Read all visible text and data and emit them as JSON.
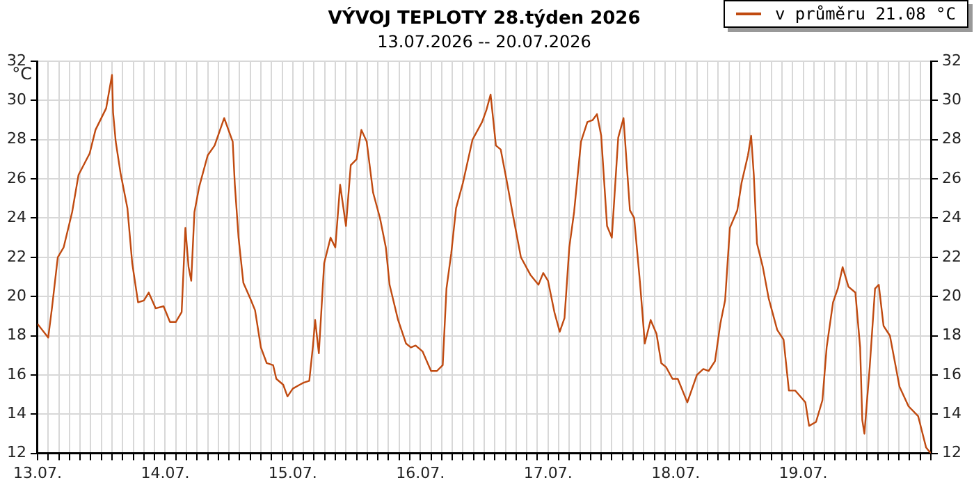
{
  "chart_data": {
    "type": "line",
    "title": "VÝVOJ TEPLOTY 28.týden 2026",
    "subtitle": "13.07.2026 -- 20.07.2026",
    "ylabel": "°C",
    "legend": "top right",
    "grid": true,
    "marker": "none",
    "line_style": "solid",
    "xlim": [
      "2026-07-13",
      "2026-07-20"
    ],
    "xticks": [
      {
        "value": "2026-07-13",
        "label": "13.07."
      },
      {
        "value": "2026-07-13T02:00",
        "label": null
      },
      {
        "value": "2026-07-13T04:00",
        "label": null
      },
      {
        "value": "2026-07-13T06:00",
        "label": null
      },
      {
        "value": "2026-07-13T08:00",
        "label": null
      },
      {
        "value": "2026-07-13T10:00",
        "label": null
      },
      {
        "value": "2026-07-13T12:00",
        "label": null
      },
      {
        "value": "2026-07-13T14:00",
        "label": null
      },
      {
        "value": "2026-07-13T16:00",
        "label": null
      },
      {
        "value": "2026-07-13T18:00",
        "label": null
      },
      {
        "value": "2026-07-13T20:00",
        "label": null
      },
      {
        "value": "2026-07-13T22:00",
        "label": null
      },
      {
        "value": "2026-07-14",
        "label": "14.07."
      },
      {
        "value": "2026-07-14T02:00",
        "label": null
      },
      {
        "value": "2026-07-14T04:00",
        "label": null
      },
      {
        "value": "2026-07-14T06:00",
        "label": null
      },
      {
        "value": "2026-07-14T08:00",
        "label": null
      },
      {
        "value": "2026-07-14T10:00",
        "label": null
      },
      {
        "value": "2026-07-14T12:00",
        "label": null
      },
      {
        "value": "2026-07-14T14:00",
        "label": null
      },
      {
        "value": "2026-07-14T16:00",
        "label": null
      },
      {
        "value": "2026-07-14T18:00",
        "label": null
      },
      {
        "value": "2026-07-14T20:00",
        "label": null
      },
      {
        "value": "2026-07-14T22:00",
        "label": null
      },
      {
        "value": "2026-07-15",
        "label": "15.07."
      },
      {
        "value": "2026-07-15T02:00",
        "label": null
      },
      {
        "value": "2026-07-15T04:00",
        "label": null
      },
      {
        "value": "2026-07-15T06:00",
        "label": null
      },
      {
        "value": "2026-07-15T08:00",
        "label": null
      },
      {
        "value": "2026-07-15T10:00",
        "label": null
      },
      {
        "value": "2026-07-15T12:00",
        "label": null
      },
      {
        "value": "2026-07-15T14:00",
        "label": null
      },
      {
        "value": "2026-07-15T16:00",
        "label": null
      },
      {
        "value": "2026-07-15T18:00",
        "label": null
      },
      {
        "value": "2026-07-15T20:00",
        "label": null
      },
      {
        "value": "2026-07-15T22:00",
        "label": null
      },
      {
        "value": "2026-07-16",
        "label": "16.07."
      },
      {
        "value": "2026-07-16T02:00",
        "label": null
      },
      {
        "value": "2026-07-16T04:00",
        "label": null
      },
      {
        "value": "2026-07-16T06:00",
        "label": null
      },
      {
        "value": "2026-07-16T08:00",
        "label": null
      },
      {
        "value": "2026-07-16T10:00",
        "label": null
      },
      {
        "value": "2026-07-16T12:00",
        "label": null
      },
      {
        "value": "2026-07-16T14:00",
        "label": null
      },
      {
        "value": "2026-07-16T16:00",
        "label": null
      },
      {
        "value": "2026-07-16T18:00",
        "label": null
      },
      {
        "value": "2026-07-16T20:00",
        "label": null
      },
      {
        "value": "2026-07-16T22:00",
        "label": null
      },
      {
        "value": "2026-07-17",
        "label": "17.07."
      },
      {
        "value": "2026-07-17T02:00",
        "label": null
      },
      {
        "value": "2026-07-17T04:00",
        "label": null
      },
      {
        "value": "2026-07-17T06:00",
        "label": null
      },
      {
        "value": "2026-07-17T08:00",
        "label": null
      },
      {
        "value": "2026-07-17T10:00",
        "label": null
      },
      {
        "value": "2026-07-17T12:00",
        "label": null
      },
      {
        "value": "2026-07-17T14:00",
        "label": null
      },
      {
        "value": "2026-07-17T16:00",
        "label": null
      },
      {
        "value": "2026-07-17T18:00",
        "label": null
      },
      {
        "value": "2026-07-17T20:00",
        "label": null
      },
      {
        "value": "2026-07-17T22:00",
        "label": null
      },
      {
        "value": "2026-07-18",
        "label": "18.07."
      },
      {
        "value": "2026-07-18T02:00",
        "label": null
      },
      {
        "value": "2026-07-18T04:00",
        "label": null
      },
      {
        "value": "2026-07-18T06:00",
        "label": null
      },
      {
        "value": "2026-07-18T08:00",
        "label": null
      },
      {
        "value": "2026-07-18T10:00",
        "label": null
      },
      {
        "value": "2026-07-18T12:00",
        "label": null
      },
      {
        "value": "2026-07-18T14:00",
        "label": null
      },
      {
        "value": "2026-07-18T16:00",
        "label": null
      },
      {
        "value": "2026-07-18T18:00",
        "label": null
      },
      {
        "value": "2026-07-18T20:00",
        "label": null
      },
      {
        "value": "2026-07-18T22:00",
        "label": null
      },
      {
        "value": "2026-07-19",
        "label": "19.07."
      },
      {
        "value": "2026-07-19T02:00",
        "label": null
      },
      {
        "value": "2026-07-19T04:00",
        "label": null
      },
      {
        "value": "2026-07-19T06:00",
        "label": null
      },
      {
        "value": "2026-07-19T08:00",
        "label": null
      },
      {
        "value": "2026-07-19T10:00",
        "label": null
      },
      {
        "value": "2026-07-19T12:00",
        "label": null
      },
      {
        "value": "2026-07-19T14:00",
        "label": null
      },
      {
        "value": "2026-07-19T16:00",
        "label": null
      },
      {
        "value": "2026-07-19T18:00",
        "label": null
      },
      {
        "value": "2026-07-19T20:00",
        "label": null
      },
      {
        "value": "2026-07-19T22:00",
        "label": null
      },
      {
        "value": "2026-07-20",
        "label": null
      }
    ],
    "ylim": [
      12,
      32
    ],
    "yticks": [
      12,
      14,
      16,
      18,
      20,
      22,
      24,
      26,
      28,
      30,
      32
    ],
    "y2lim": [
      12,
      32
    ],
    "y2ticks": [
      12,
      14,
      16,
      18,
      20,
      22,
      24,
      26,
      28,
      30,
      32
    ],
    "x": [
      "2026-07-13T00:00",
      "2026-07-13T02:00",
      "2026-07-13T02:42",
      "2026-07-13T03:48",
      "2026-07-13T04:54",
      "2026-07-13T06:30",
      "2026-07-13T07:42",
      "2026-07-13T09:48",
      "2026-07-13T10:54",
      "2026-07-13T12:54",
      "2026-07-13T14:00",
      "2026-07-13T14:12",
      "2026-07-13T14:42",
      "2026-07-13T15:36",
      "2026-07-13T16:54",
      "2026-07-13T17:48",
      "2026-07-13T18:54",
      "2026-07-13T20:00",
      "2026-07-13T20:54",
      "2026-07-13T22:12",
      "2026-07-13T23:42",
      "2026-07-14T00:54",
      "2026-07-14T02:00",
      "2026-07-14T03:06",
      "2026-07-14T03:48",
      "2026-07-14T04:24",
      "2026-07-14T04:54",
      "2026-07-14T05:30",
      "2026-07-14T06:24",
      "2026-07-14T08:00",
      "2026-07-14T09:18",
      "2026-07-14T11:06",
      "2026-07-14T12:42",
      "2026-07-14T13:06",
      "2026-07-14T13:48",
      "2026-07-14T14:42",
      "2026-07-14T16:00",
      "2026-07-14T16:54",
      "2026-07-14T18:00",
      "2026-07-14T19:06",
      "2026-07-14T20:18",
      "2026-07-14T20:54",
      "2026-07-14T22:12",
      "2026-07-14T23:00",
      "2026-07-15T00:00",
      "2026-07-15T01:18",
      "2026-07-15T02:00",
      "2026-07-15T03:06",
      "2026-07-15T03:48",
      "2026-07-15T04:12",
      "2026-07-15T04:54",
      "2026-07-15T05:54",
      "2026-07-15T07:06",
      "2026-07-15T08:00",
      "2026-07-15T08:54",
      "2026-07-15T10:00",
      "2026-07-15T10:54",
      "2026-07-15T12:00",
      "2026-07-15T12:54",
      "2026-07-15T13:54",
      "2026-07-15T15:06",
      "2026-07-15T16:24",
      "2026-07-15T17:30",
      "2026-07-15T18:12",
      "2026-07-15T19:48",
      "2026-07-15T21:18",
      "2026-07-15T22:12",
      "2026-07-15T23:06",
      "2026-07-16T00:24",
      "2026-07-16T02:00",
      "2026-07-16T03:06",
      "2026-07-16T04:12",
      "2026-07-16T04:54",
      "2026-07-16T05:48",
      "2026-07-16T06:42",
      "2026-07-16T08:00",
      "2026-07-16T09:48",
      "2026-07-16T11:36",
      "2026-07-16T12:24",
      "2026-07-16T13:12",
      "2026-07-16T14:12",
      "2026-07-16T15:06",
      "2026-07-16T16:18",
      "2026-07-16T17:18",
      "2026-07-16T18:54",
      "2026-07-16T20:42",
      "2026-07-16T22:12",
      "2026-07-16T23:06",
      "2026-07-17T00:00",
      "2026-07-17T01:12",
      "2026-07-17T02:12",
      "2026-07-17T03:06",
      "2026-07-17T04:00",
      "2026-07-17T04:54",
      "2026-07-17T06:12",
      "2026-07-17T07:24",
      "2026-07-17T08:24",
      "2026-07-17T09:12",
      "2026-07-17T10:00",
      "2026-07-17T11:06",
      "2026-07-17T12:00",
      "2026-07-17T13:12",
      "2026-07-17T14:12",
      "2026-07-17T15:24",
      "2026-07-17T16:12",
      "2026-07-17T17:18",
      "2026-07-17T18:12",
      "2026-07-17T19:18",
      "2026-07-17T20:24",
      "2026-07-17T21:18",
      "2026-07-17T22:12",
      "2026-07-17T23:24",
      "2026-07-18T00:24",
      "2026-07-18T02:12",
      "2026-07-18T04:00",
      "2026-07-18T05:12",
      "2026-07-18T06:12",
      "2026-07-18T07:24",
      "2026-07-18T08:24",
      "2026-07-18T09:18",
      "2026-07-18T10:12",
      "2026-07-18T11:36",
      "2026-07-18T12:24",
      "2026-07-18T13:36",
      "2026-07-18T14:12",
      "2026-07-18T14:42",
      "2026-07-18T15:18",
      "2026-07-18T16:24",
      "2026-07-18T17:30",
      "2026-07-18T19:06",
      "2026-07-18T20:18",
      "2026-07-18T21:18",
      "2026-07-18T22:30",
      "2026-07-19T00:24",
      "2026-07-19T01:06",
      "2026-07-19T02:24",
      "2026-07-19T03:36",
      "2026-07-19T04:24",
      "2026-07-19T05:36",
      "2026-07-19T06:30",
      "2026-07-19T07:24",
      "2026-07-19T08:30",
      "2026-07-19T09:48",
      "2026-07-19T10:42",
      "2026-07-19T11:06",
      "2026-07-19T11:30",
      "2026-07-19T12:30",
      "2026-07-19T13:30",
      "2026-07-19T14:12",
      "2026-07-19T15:06",
      "2026-07-19T16:18",
      "2026-07-19T18:06",
      "2026-07-19T19:48",
      "2026-07-19T21:36",
      "2026-07-19T23:06",
      "2026-07-20T00:00"
    ],
    "series": [
      {
        "name": "v průměru 21.08 °C",
        "color": "#c04a10",
        "values": [
          18.6,
          17.9,
          19.4,
          22.0,
          22.5,
          24.3,
          26.2,
          27.3,
          28.5,
          29.6,
          31.3,
          29.4,
          27.9,
          26.3,
          24.5,
          21.7,
          19.7,
          19.8,
          20.2,
          19.4,
          19.5,
          18.7,
          18.7,
          19.2,
          23.5,
          21.5,
          20.8,
          24.3,
          25.6,
          27.2,
          27.7,
          29.1,
          27.9,
          25.7,
          23.0,
          20.7,
          19.9,
          19.3,
          17.4,
          16.6,
          16.5,
          15.8,
          15.5,
          14.9,
          15.3,
          15.5,
          15.6,
          15.7,
          17.5,
          18.8,
          17.1,
          21.7,
          23.0,
          22.5,
          25.7,
          23.6,
          26.7,
          27.0,
          28.5,
          27.9,
          25.3,
          24.0,
          22.5,
          20.6,
          18.8,
          17.6,
          17.4,
          17.5,
          17.2,
          16.2,
          16.2,
          16.5,
          20.4,
          22.2,
          24.5,
          25.8,
          28.0,
          28.9,
          29.5,
          30.3,
          27.7,
          27.5,
          25.8,
          24.3,
          22.0,
          21.1,
          20.6,
          21.2,
          20.8,
          19.2,
          18.2,
          18.9,
          22.5,
          24.3,
          27.9,
          28.9,
          29.0,
          29.3,
          28.2,
          23.6,
          23.0,
          28.1,
          29.1,
          24.4,
          24.0,
          20.7,
          17.6,
          18.8,
          18.1,
          16.6,
          16.4,
          15.8,
          15.8,
          14.6,
          16.0,
          16.3,
          16.2,
          16.7,
          18.6,
          19.8,
          23.5,
          24.4,
          25.8,
          27.2,
          28.2,
          26.2,
          22.7,
          21.5,
          19.9,
          18.3,
          17.8,
          15.2,
          15.2,
          14.6,
          13.4,
          13.6,
          14.7,
          17.4,
          19.7,
          20.4,
          21.5,
          20.5,
          20.2,
          17.4,
          13.7,
          13.0,
          16.4,
          20.4,
          20.6,
          18.5,
          18.0,
          15.4,
          14.4,
          13.9,
          12.3,
          12.0
        ]
      }
    ]
  }
}
